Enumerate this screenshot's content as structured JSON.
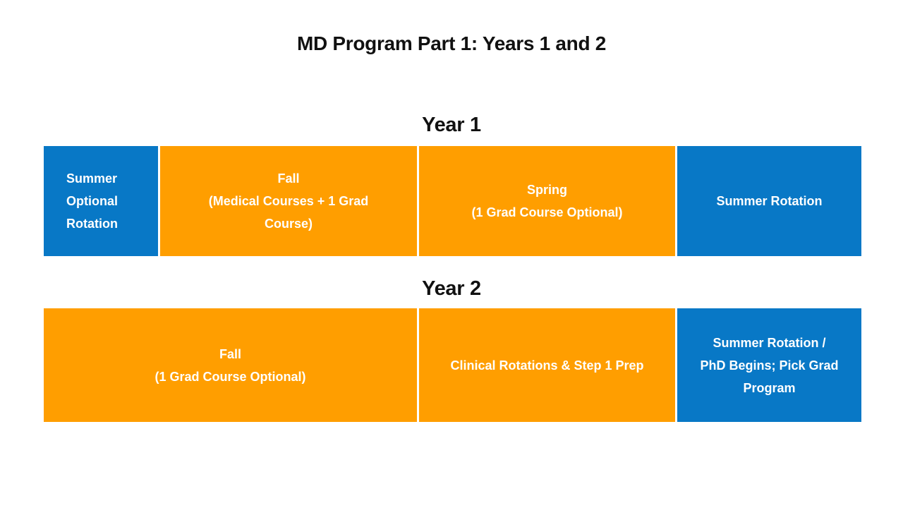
{
  "title": "MD Program Part 1: Years 1 and 2",
  "colors": {
    "blue": "#0878C6",
    "orange": "#FF9E00",
    "heading_text": "#111111",
    "box_text": "#FFFFFF",
    "background": "#FFFFFF"
  },
  "year1": {
    "label": "Year 1",
    "boxes": [
      {
        "text": "Summer\nOptional\nRotation",
        "color": "blue"
      },
      {
        "text": "Fall\n(Medical Courses + 1 Grad\nCourse)",
        "color": "orange"
      },
      {
        "text": "Spring\n(1 Grad Course Optional)",
        "color": "orange"
      },
      {
        "text": "Summer Rotation",
        "color": "blue"
      }
    ]
  },
  "year2": {
    "label": "Year 2",
    "boxes": [
      {
        "text": "Fall\n(1 Grad Course Optional)",
        "color": "orange"
      },
      {
        "text": "Clinical Rotations & Step 1 Prep",
        "color": "orange"
      },
      {
        "text": "Summer Rotation /\nPhD Begins; Pick Grad\nProgram",
        "color": "blue"
      }
    ]
  }
}
